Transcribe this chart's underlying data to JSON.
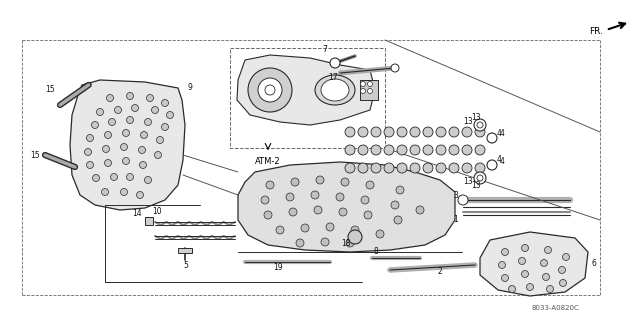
{
  "bg_color": "#ffffff",
  "line_color": "#2a2a2a",
  "dashed_color": "#666666",
  "fig_width": 6.4,
  "fig_height": 3.19,
  "diagram_code": "8033-A0820C"
}
